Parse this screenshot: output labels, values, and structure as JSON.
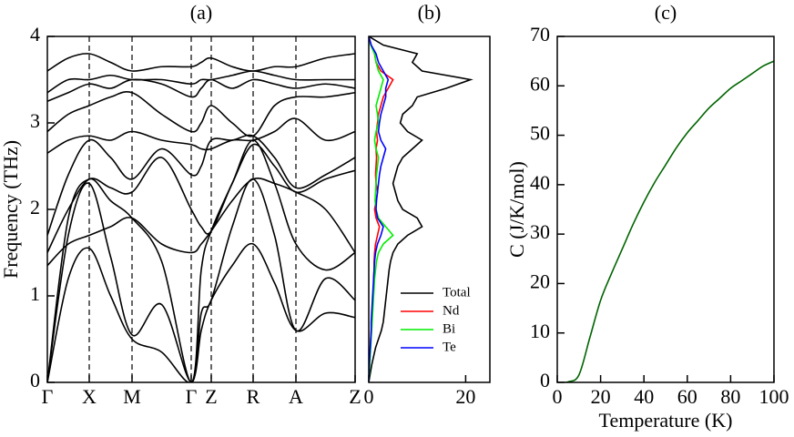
{
  "chart_data": [
    {
      "type": "line",
      "title": "(a)",
      "ylabel": "Frequency (THz)",
      "x": [
        0,
        23,
        46,
        69.5,
        93,
        125.5,
        158,
        169,
        180,
        203,
        226,
        249.5,
        273,
        305.5,
        338
      ],
      "xlim": [
        0,
        338
      ],
      "xticks": [
        {
          "value": 0,
          "label": "Γ"
        },
        {
          "value": 46,
          "label": "X"
        },
        {
          "value": 93,
          "label": "M"
        },
        {
          "value": 158,
          "label": "Γ"
        },
        {
          "value": 180,
          "label": "Z"
        },
        {
          "value": 226,
          "label": "R"
        },
        {
          "value": 273,
          "label": "A"
        },
        {
          "value": 338,
          "label": "Z"
        }
      ],
      "ylim": [
        0,
        4
      ],
      "yticks": [
        0,
        1,
        2,
        3,
        4
      ],
      "grid": true,
      "series": [
        {
          "color": "#000000",
          "values": [
            0,
            1.2,
            1.55,
            1.0,
            0.5,
            0.35,
            0,
            0.6,
            0.95,
            1.35,
            1.6,
            1.15,
            0.6,
            0.8,
            0.75
          ]
        },
        {
          "color": "#000000",
          "values": [
            0,
            1.7,
            2.3,
            1.45,
            0.55,
            0.9,
            0,
            0.8,
            0.95,
            1.8,
            2.35,
            1.7,
            0.6,
            1.2,
            0.95
          ]
        },
        {
          "color": "#000000",
          "values": [
            0,
            1.9,
            2.35,
            2.1,
            1.9,
            1.4,
            0,
            1.3,
            1.75,
            2.3,
            2.8,
            2.3,
            1.6,
            1.3,
            1.5
          ]
        },
        {
          "color": "#000000",
          "values": [
            1.35,
            1.6,
            1.7,
            1.8,
            1.9,
            1.6,
            1.5,
            1.6,
            1.75,
            2.1,
            2.35,
            2.3,
            2.2,
            2.0,
            1.5
          ]
        },
        {
          "color": "#000000",
          "values": [
            1.5,
            2.0,
            2.35,
            2.25,
            2.2,
            2.6,
            2.0,
            1.8,
            1.75,
            2.3,
            2.75,
            2.5,
            2.2,
            2.35,
            2.45
          ]
        },
        {
          "color": "#000000",
          "values": [
            1.7,
            2.4,
            2.8,
            2.6,
            2.35,
            2.7,
            2.4,
            2.5,
            2.8,
            2.8,
            2.85,
            2.6,
            2.25,
            2.4,
            2.6
          ]
        },
        {
          "color": "#000000",
          "values": [
            2.65,
            2.8,
            2.85,
            2.8,
            2.9,
            2.8,
            2.75,
            2.7,
            2.7,
            2.8,
            2.8,
            2.9,
            3.05,
            2.8,
            2.9
          ]
        },
        {
          "color": "#000000",
          "values": [
            2.9,
            3.1,
            3.2,
            3.3,
            3.35,
            3.1,
            2.9,
            3.0,
            3.2,
            3.0,
            2.85,
            3.2,
            3.3,
            3.3,
            3.35
          ]
        },
        {
          "color": "#000000",
          "values": [
            3.25,
            3.35,
            3.45,
            3.4,
            3.5,
            3.45,
            3.3,
            3.4,
            3.5,
            3.4,
            3.5,
            3.45,
            3.4,
            3.45,
            3.4
          ]
        },
        {
          "color": "#000000",
          "values": [
            3.35,
            3.5,
            3.5,
            3.55,
            3.5,
            3.5,
            3.45,
            3.5,
            3.5,
            3.55,
            3.6,
            3.55,
            3.5,
            3.5,
            3.5
          ]
        },
        {
          "color": "#000000",
          "values": [
            3.6,
            3.75,
            3.8,
            3.7,
            3.6,
            3.65,
            3.65,
            3.7,
            3.75,
            3.65,
            3.6,
            3.65,
            3.65,
            3.75,
            3.8
          ]
        }
      ]
    },
    {
      "type": "line",
      "orientation": "horizontal",
      "title": "(b)",
      "y": [
        0,
        0.1,
        0.2,
        0.3,
        0.4,
        0.5,
        0.6,
        0.7,
        0.8,
        0.9,
        1,
        1.1,
        1.2,
        1.3,
        1.4,
        1.5,
        1.6,
        1.7,
        1.8,
        1.9,
        2,
        2.1,
        2.2,
        2.3,
        2.4,
        2.5,
        2.6,
        2.7,
        2.8,
        2.9,
        3,
        3.1,
        3.2,
        3.3,
        3.4,
        3.5,
        3.6,
        3.7,
        3.8,
        3.9,
        4
      ],
      "xlim": [
        0,
        25
      ],
      "xticks": [
        0,
        20
      ],
      "ylim": [
        0,
        4
      ],
      "legend": "lower right",
      "series": [
        {
          "name": "Total",
          "color": "#000000",
          "values": [
            0,
            0.3,
            0.6,
            1,
            1.4,
            2,
            2.6,
            3,
            3.2,
            3.4,
            3.6,
            3.8,
            4,
            4.2,
            4.5,
            5,
            6,
            8,
            11,
            10,
            7,
            6,
            5.5,
            5,
            5.5,
            6,
            7,
            9,
            11,
            8,
            6.5,
            7,
            9,
            10,
            16,
            21,
            11,
            9,
            10,
            3,
            0
          ]
        },
        {
          "name": "Nd",
          "color": "#ff0000",
          "values": [
            0,
            0.05,
            0.1,
            0.2,
            0.3,
            0.4,
            0.5,
            0.6,
            0.7,
            0.8,
            0.9,
            1,
            1,
            1.1,
            1.1,
            1.2,
            1.4,
            1.8,
            2.2,
            1.5,
            1.2,
            1.5,
            1.8,
            1.5,
            1.4,
            1.5,
            1.6,
            1.5,
            1.8,
            1.6,
            1.8,
            2,
            2.5,
            3,
            4,
            5,
            2.5,
            1.5,
            1.2,
            0.5,
            0
          ]
        },
        {
          "name": "Bi",
          "color": "#00ee00",
          "values": [
            0,
            0.1,
            0.2,
            0.3,
            0.4,
            0.5,
            0.6,
            0.7,
            0.8,
            0.9,
            1,
            1.1,
            1.2,
            1.4,
            1.6,
            2,
            3,
            5,
            3.5,
            2,
            1.5,
            1.3,
            1.4,
            1.5,
            1.6,
            1.8,
            2,
            1.5,
            1.2,
            1.5,
            2,
            1.8,
            1.5,
            2,
            2.5,
            3,
            2,
            1.5,
            1.2,
            0.4,
            0
          ]
        },
        {
          "name": "Te",
          "color": "#0000ff",
          "values": [
            0,
            0.05,
            0.1,
            0.2,
            0.3,
            0.4,
            0.5,
            0.5,
            0.6,
            0.7,
            0.8,
            0.9,
            1,
            1.1,
            1.2,
            1.4,
            1.8,
            2.5,
            3,
            1.8,
            1.5,
            1.6,
            1.8,
            2,
            2.2,
            2.5,
            3,
            3.5,
            2.5,
            2,
            2.2,
            2.5,
            3,
            3.5,
            3.5,
            4,
            3,
            2,
            1.5,
            0.5,
            0
          ]
        }
      ]
    },
    {
      "type": "line",
      "title": "(c)",
      "xlabel": "Temperature (K)",
      "ylabel": "C (J/K/mol)",
      "x": [
        0,
        5,
        10,
        15,
        20,
        25,
        30,
        35,
        40,
        45,
        50,
        55,
        60,
        65,
        70,
        75,
        80,
        85,
        90,
        95,
        100
      ],
      "xlim": [
        0,
        100
      ],
      "xticks": [
        0,
        20,
        40,
        60,
        80,
        100
      ],
      "ylim": [
        0,
        70
      ],
      "yticks": [
        0,
        10,
        20,
        30,
        40,
        50,
        60,
        70
      ],
      "series": [
        {
          "color": "#006400",
          "values": [
            0,
            0.1,
            1.5,
            9,
            16.6,
            22,
            27,
            32,
            36.5,
            40.5,
            44,
            47.5,
            50.5,
            53,
            55.5,
            57.5,
            59.5,
            61,
            62.5,
            64,
            65
          ]
        }
      ]
    }
  ]
}
